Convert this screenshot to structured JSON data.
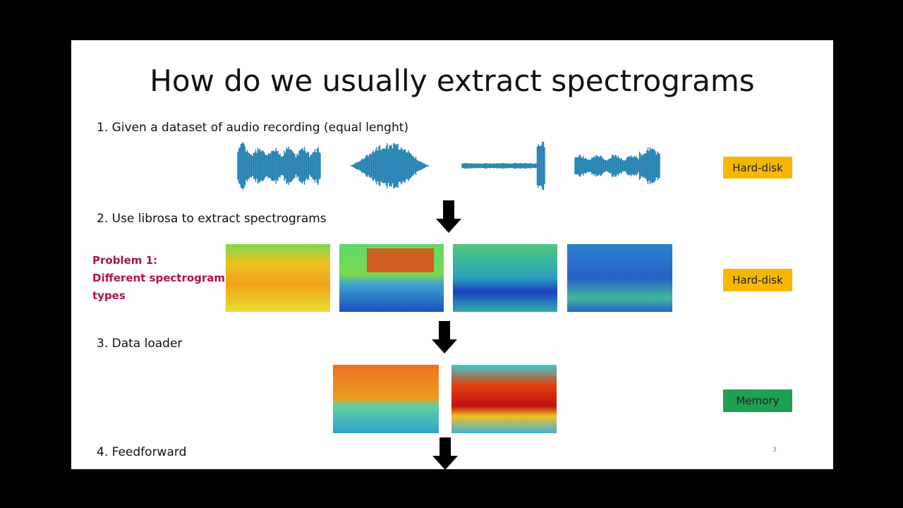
{
  "title": "How do we usually extract spectrograms",
  "steps": [
    "1. Given a dataset of audio recording (equal lenght)",
    "2. Use librosa to extract spectrograms",
    "3. Data loader",
    "4. Feedforward"
  ],
  "problem": {
    "lines": [
      "Problem 1:",
      "Different spectrogram",
      "types"
    ]
  },
  "storage": [
    "Hard-disk",
    "Hard-disk",
    "Memory"
  ],
  "slide_number": "3"
}
